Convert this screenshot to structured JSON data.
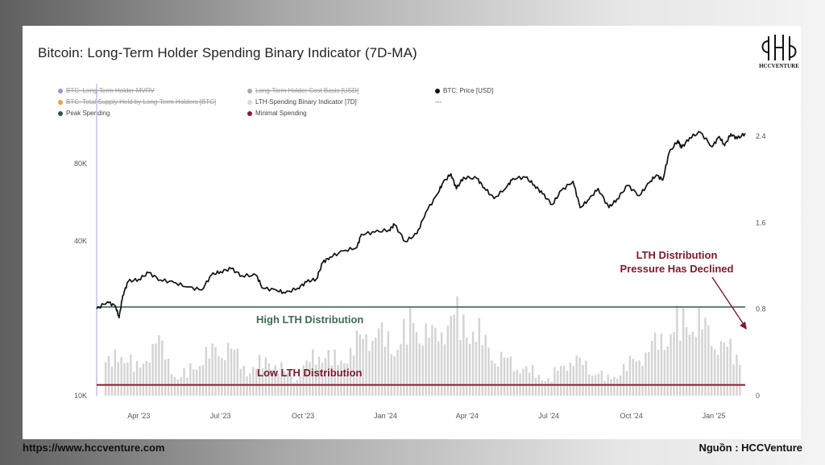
{
  "title": "Bitcoin: Long-Term Holder Spending Binary Indicator (7D-MA)",
  "logo_text": "HCCVENTURE",
  "footer": {
    "website": "https://www.hccventure.com",
    "source": "Nguồn : HCCVenture"
  },
  "colors": {
    "price": "#111111",
    "peak_line": "#3e6a52",
    "minimal_line": "#8a1a2a",
    "bars": "#d3d3d3",
    "annotation": "#7a1a2c",
    "mvrv_legend": "#9b8fd6"
  },
  "legend": [
    {
      "label": "BTC: Long-Term Holder MVRV",
      "color": "#a090d8",
      "disabled": true
    },
    {
      "label": "Long-Term Holder Cost Basis [USD]",
      "color": "#aaaaaa",
      "disabled": true
    },
    {
      "label": "BTC: Price [USD]",
      "color": "#111111",
      "disabled": false
    },
    {
      "label": "BTC: Total Supply Held by Long-Term Holders [BTC]",
      "color": "#f0a040",
      "disabled": true
    },
    {
      "label": "LTH-Spending Binary Indicator [7D]",
      "color": "#d8d8d8",
      "disabled": false
    },
    {
      "label": "---",
      "color": "",
      "disabled": false
    },
    {
      "label": "Peak Spending",
      "color": "#2d5a3e",
      "disabled": false
    },
    {
      "label": "Minimal Spending",
      "color": "#8a1a2a",
      "disabled": false
    }
  ],
  "annotations": {
    "high": "High LTH Distribution",
    "low": "Low LTH Distribution",
    "declined_line1": "LTH Distribution",
    "declined_line2": "Pressure Has Declined"
  },
  "chart_data": {
    "type": "line",
    "title": "Bitcoin: Long-Term Holder Spending Binary Indicator (7D-MA)",
    "x_range": [
      "2023-02-13",
      "2025-02-05"
    ],
    "x_ticks": [
      {
        "date": "2023-04-01",
        "label": "Apr '23"
      },
      {
        "date": "2023-07-01",
        "label": "Jul '23"
      },
      {
        "date": "2023-10-01",
        "label": "Oct '23"
      },
      {
        "date": "2024-01-01",
        "label": "Jan '24"
      },
      {
        "date": "2024-04-01",
        "label": "Apr '24"
      },
      {
        "date": "2024-07-01",
        "label": "Jul '24"
      },
      {
        "date": "2024-10-01",
        "label": "Oct '24"
      },
      {
        "date": "2025-01-01",
        "label": "Jan '25"
      }
    ],
    "y_left": {
      "scale": "log",
      "range": [
        10000,
        150000
      ],
      "ticks": [
        {
          "value": 10000,
          "label": "10K"
        },
        {
          "value": 40000,
          "label": "40K"
        },
        {
          "value": 80000,
          "label": "80K"
        }
      ]
    },
    "y_right": {
      "scale": "linear",
      "range": [
        0,
        2.4
      ],
      "ticks": [
        {
          "value": 0,
          "label": "0"
        },
        {
          "value": 0.8,
          "label": "0.8"
        },
        {
          "value": 1.6,
          "label": "1.6"
        },
        {
          "value": 2.4,
          "label": "2.4"
        }
      ]
    },
    "reference_lines": [
      {
        "name": "Peak Spending",
        "value": 0.82
      },
      {
        "name": "Minimal Spending",
        "value": 0.1
      }
    ],
    "series": [
      {
        "name": "BTC: Price [USD]",
        "axis": "left",
        "points": [
          [
            "2023-02-13",
            21800
          ],
          [
            "2023-02-25",
            23200
          ],
          [
            "2023-03-06",
            22300
          ],
          [
            "2023-03-10",
            20100
          ],
          [
            "2023-03-14",
            24500
          ],
          [
            "2023-03-20",
            27800
          ],
          [
            "2023-04-01",
            28400
          ],
          [
            "2023-04-12",
            30100
          ],
          [
            "2023-04-25",
            28200
          ],
          [
            "2023-05-10",
            27600
          ],
          [
            "2023-05-25",
            26500
          ],
          [
            "2023-06-10",
            25800
          ],
          [
            "2023-06-21",
            29500
          ],
          [
            "2023-07-01",
            30400
          ],
          [
            "2023-07-13",
            31200
          ],
          [
            "2023-07-25",
            29300
          ],
          [
            "2023-08-10",
            29400
          ],
          [
            "2023-08-17",
            26200
          ],
          [
            "2023-09-01",
            25800
          ],
          [
            "2023-09-11",
            25100
          ],
          [
            "2023-09-25",
            26200
          ],
          [
            "2023-10-05",
            27700
          ],
          [
            "2023-10-16",
            28500
          ],
          [
            "2023-10-23",
            33000
          ],
          [
            "2023-10-31",
            34600
          ],
          [
            "2023-11-15",
            36600
          ],
          [
            "2023-11-30",
            37700
          ],
          [
            "2023-12-05",
            42500
          ],
          [
            "2023-12-20",
            43300
          ],
          [
            "2024-01-05",
            44200
          ],
          [
            "2024-01-11",
            46300
          ],
          [
            "2024-01-23",
            39800
          ],
          [
            "2024-02-05",
            42700
          ],
          [
            "2024-02-15",
            51800
          ],
          [
            "2024-02-28",
            61000
          ],
          [
            "2024-03-05",
            67500
          ],
          [
            "2024-03-14",
            73000
          ],
          [
            "2024-03-20",
            63800
          ],
          [
            "2024-03-28",
            70800
          ],
          [
            "2024-04-12",
            70000
          ],
          [
            "2024-04-20",
            64500
          ],
          [
            "2024-05-01",
            58500
          ],
          [
            "2024-05-15",
            64800
          ],
          [
            "2024-05-22",
            70000
          ],
          [
            "2024-06-05",
            70800
          ],
          [
            "2024-06-15",
            66000
          ],
          [
            "2024-06-24",
            61000
          ],
          [
            "2024-07-05",
            55500
          ],
          [
            "2024-07-15",
            62900
          ],
          [
            "2024-07-28",
            68300
          ],
          [
            "2024-08-05",
            53900
          ],
          [
            "2024-08-15",
            58200
          ],
          [
            "2024-08-25",
            64000
          ],
          [
            "2024-09-06",
            53900
          ],
          [
            "2024-09-15",
            58200
          ],
          [
            "2024-09-27",
            65800
          ],
          [
            "2024-10-10",
            60100
          ],
          [
            "2024-10-21",
            67500
          ],
          [
            "2024-10-29",
            72300
          ],
          [
            "2024-11-05",
            69000
          ],
          [
            "2024-11-12",
            88000
          ],
          [
            "2024-11-22",
            98500
          ],
          [
            "2024-11-26",
            92000
          ],
          [
            "2024-12-05",
            101000
          ],
          [
            "2024-12-17",
            106000
          ],
          [
            "2024-12-30",
            93000
          ],
          [
            "2025-01-07",
            102000
          ],
          [
            "2025-01-13",
            94000
          ],
          [
            "2025-01-20",
            104500
          ],
          [
            "2025-01-27",
            100000
          ],
          [
            "2025-02-05",
            105000
          ]
        ]
      },
      {
        "name": "LTH-Spending Binary Indicator [7D]",
        "axis": "right",
        "type": "bar",
        "points": [
          [
            "2023-03-01",
            0.4
          ],
          [
            "2023-03-15",
            0.55
          ],
          [
            "2023-04-01",
            0.3
          ],
          [
            "2023-04-20",
            0.7
          ],
          [
            "2023-05-15",
            0.2
          ],
          [
            "2023-06-10",
            0.45
          ],
          [
            "2023-06-25",
            0.55
          ],
          [
            "2023-07-10",
            0.6
          ],
          [
            "2023-08-01",
            0.3
          ],
          [
            "2023-08-25",
            0.45
          ],
          [
            "2023-09-20",
            0.2
          ],
          [
            "2023-10-20",
            0.55
          ],
          [
            "2023-11-10",
            0.4
          ],
          [
            "2023-12-01",
            0.65
          ],
          [
            "2023-12-20",
            0.8
          ],
          [
            "2024-01-10",
            0.6
          ],
          [
            "2024-02-01",
            0.9
          ],
          [
            "2024-02-25",
            0.7
          ],
          [
            "2024-03-15",
            0.98
          ],
          [
            "2024-04-10",
            0.8
          ],
          [
            "2024-05-01",
            0.5
          ],
          [
            "2024-05-20",
            0.4
          ],
          [
            "2024-06-10",
            0.3
          ],
          [
            "2024-07-01",
            0.2
          ],
          [
            "2024-07-25",
            0.45
          ],
          [
            "2024-08-15",
            0.35
          ],
          [
            "2024-09-05",
            0.2
          ],
          [
            "2024-10-01",
            0.4
          ],
          [
            "2024-10-25",
            0.6
          ],
          [
            "2024-11-20",
            0.85
          ],
          [
            "2024-12-10",
            0.95
          ],
          [
            "2025-01-01",
            0.7
          ],
          [
            "2025-01-25",
            0.5
          ]
        ]
      }
    ]
  }
}
